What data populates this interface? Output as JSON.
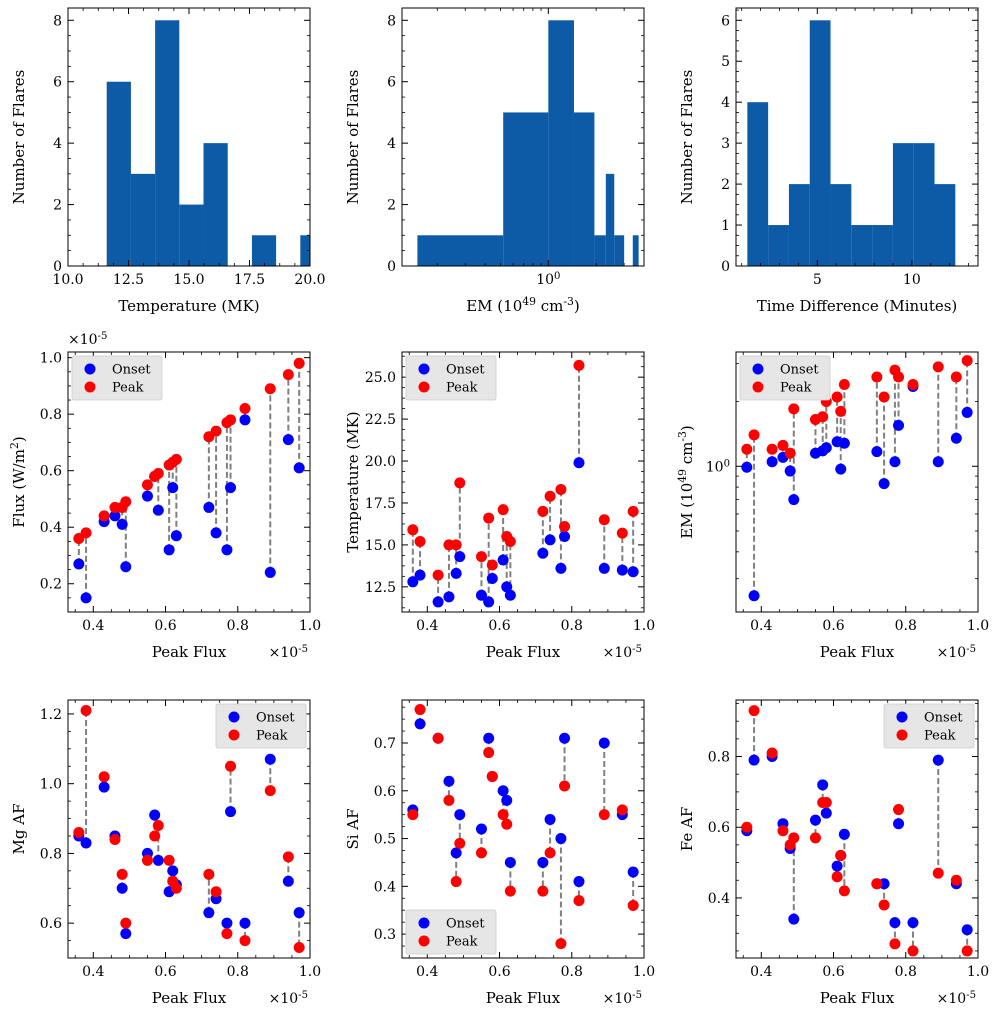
{
  "chart_data": [
    {
      "id": "temp-hist",
      "type": "histogram",
      "xlabel": "Temperature (MK)",
      "ylabel": "Number of Flares",
      "xlim": [
        10.0,
        20.0
      ],
      "ylim": [
        0,
        8.4
      ],
      "xscale": "linear",
      "xticks": [
        10.0,
        12.5,
        15.0,
        17.5,
        20.0
      ],
      "xtick_labels": [
        "10.0",
        "12.5",
        "15.0",
        "17.5",
        "20.0"
      ],
      "yticks": [
        0,
        2,
        4,
        6,
        8
      ],
      "ytick_labels": [
        "0",
        "2",
        "4",
        "6",
        "8"
      ],
      "bins": [
        [
          11.6,
          12.6,
          6
        ],
        [
          12.6,
          13.6,
          3
        ],
        [
          13.6,
          14.6,
          8
        ],
        [
          14.6,
          15.6,
          2
        ],
        [
          15.6,
          16.6,
          4
        ],
        [
          16.6,
          17.6,
          0
        ],
        [
          17.6,
          18.6,
          1
        ],
        [
          18.6,
          19.6,
          0
        ],
        [
          19.6,
          20.6,
          1
        ]
      ]
    },
    {
      "id": "em-hist",
      "type": "histogram",
      "xlabel": "EM (10^49 cm^-3)",
      "ylabel": "Number of Flares",
      "xlim": [
        0.12,
        4.0
      ],
      "ylim": [
        0,
        8.4
      ],
      "xscale": "log",
      "xticks": [
        1.0
      ],
      "xtick_labels": [
        "10^0"
      ],
      "yticks": [
        0,
        2,
        4,
        6,
        8
      ],
      "ytick_labels": [
        "0",
        "2",
        "4",
        "6",
        "8"
      ],
      "bins": [
        [
          0.15,
          0.52,
          1
        ],
        [
          0.52,
          1.0,
          5
        ],
        [
          1.0,
          1.45,
          8
        ],
        [
          1.45,
          1.95,
          5
        ],
        [
          1.95,
          2.3,
          1
        ],
        [
          2.3,
          2.6,
          3
        ],
        [
          2.6,
          3.0,
          1
        ],
        [
          3.0,
          3.4,
          0
        ],
        [
          3.4,
          3.7,
          1
        ]
      ]
    },
    {
      "id": "dt-hist",
      "type": "histogram",
      "xlabel": "Time Difference (Minutes)",
      "ylabel": "Number of Flares",
      "xlim": [
        0.7,
        13.5
      ],
      "ylim": [
        0,
        6.3
      ],
      "xscale": "linear",
      "xticks": [
        5,
        10
      ],
      "xtick_labels": [
        "5",
        "10"
      ],
      "yticks": [
        0,
        1,
        2,
        3,
        4,
        5,
        6
      ],
      "ytick_labels": [
        "0",
        "1",
        "2",
        "3",
        "4",
        "5",
        "6"
      ],
      "bins": [
        [
          1.3,
          2.4,
          4
        ],
        [
          2.4,
          3.5,
          1
        ],
        [
          3.5,
          4.6,
          2
        ],
        [
          4.6,
          5.7,
          6
        ],
        [
          5.7,
          6.8,
          2
        ],
        [
          6.8,
          7.9,
          1
        ],
        [
          7.9,
          9.0,
          1
        ],
        [
          9.0,
          10.1,
          3
        ],
        [
          10.1,
          11.2,
          3
        ],
        [
          11.2,
          12.3,
          2
        ]
      ]
    },
    {
      "id": "flux-scatter",
      "type": "scatter",
      "xlabel": "Peak Flux",
      "ylabel": "Flux (W/m^2)",
      "x_offset_label": "×10^-5",
      "y_offset_label": "×10^-5",
      "xlim": [
        0.33,
        1.0
      ],
      "ylim": [
        0.1,
        1.02
      ],
      "xscale": "linear",
      "yscale": "linear",
      "xticks": [
        0.4,
        0.6,
        0.8,
        1.0
      ],
      "xtick_labels": [
        "0.4",
        "0.6",
        "0.8",
        "1.0"
      ],
      "yticks": [
        0.2,
        0.4,
        0.6,
        0.8,
        1.0
      ],
      "ytick_labels": [
        "0.2",
        "0.4",
        "0.6",
        "0.8",
        "1.0"
      ],
      "legend": {
        "position": "upper-left",
        "entries": [
          "Onset",
          "Peak"
        ]
      },
      "x": [
        0.36,
        0.38,
        0.43,
        0.46,
        0.48,
        0.49,
        0.55,
        0.57,
        0.58,
        0.61,
        0.62,
        0.63,
        0.72,
        0.74,
        0.77,
        0.78,
        0.82,
        0.89,
        0.94,
        0.97
      ],
      "onset": [
        0.27,
        0.15,
        0.42,
        0.44,
        0.41,
        0.26,
        0.51,
        0.58,
        0.46,
        0.32,
        0.54,
        0.37,
        0.47,
        0.38,
        0.32,
        0.54,
        0.78,
        0.24,
        0.71,
        0.61
      ],
      "peak": [
        0.36,
        0.38,
        0.44,
        0.47,
        0.47,
        0.49,
        0.55,
        0.58,
        0.59,
        0.62,
        0.63,
        0.64,
        0.72,
        0.74,
        0.77,
        0.78,
        0.82,
        0.89,
        0.94,
        0.98
      ]
    },
    {
      "id": "temp-scatter",
      "type": "scatter",
      "xlabel": "Peak Flux",
      "ylabel": "Temperature (MK)",
      "x_offset_label": "×10^-5",
      "xlim": [
        0.33,
        1.0
      ],
      "ylim": [
        11.0,
        26.5
      ],
      "xscale": "linear",
      "yscale": "linear",
      "xticks": [
        0.4,
        0.6,
        0.8,
        1.0
      ],
      "xtick_labels": [
        "0.4",
        "0.6",
        "0.8",
        "1.0"
      ],
      "yticks": [
        12.5,
        15.0,
        17.5,
        20.0,
        22.5,
        25.0
      ],
      "ytick_labels": [
        "12.5",
        "15.0",
        "17.5",
        "20.0",
        "22.5",
        "25.0"
      ],
      "legend": {
        "position": "upper-left",
        "entries": [
          "Onset",
          "Peak"
        ]
      },
      "x": [
        0.36,
        0.38,
        0.43,
        0.46,
        0.48,
        0.49,
        0.55,
        0.57,
        0.58,
        0.61,
        0.62,
        0.63,
        0.72,
        0.74,
        0.77,
        0.78,
        0.82,
        0.89,
        0.94,
        0.97
      ],
      "onset": [
        12.8,
        13.2,
        11.6,
        11.9,
        13.3,
        14.3,
        12.0,
        11.6,
        13.0,
        14.1,
        12.5,
        12.0,
        14.5,
        15.3,
        13.6,
        15.5,
        19.9,
        13.6,
        13.5,
        13.4
      ],
      "peak": [
        15.9,
        15.2,
        13.2,
        15.0,
        15.0,
        18.7,
        14.3,
        16.6,
        13.8,
        17.1,
        15.5,
        15.2,
        17.0,
        17.9,
        18.3,
        16.1,
        25.7,
        16.5,
        15.7,
        17.0
      ]
    },
    {
      "id": "em-scatter",
      "type": "scatter",
      "xlabel": "Peak Flux",
      "ylabel": "EM (10^49 cm^-3)",
      "x_offset_label": "×10^-5",
      "xlim": [
        0.33,
        1.0
      ],
      "ylim": [
        0.21,
        3.4
      ],
      "xscale": "linear",
      "yscale": "log",
      "xticks": [
        0.4,
        0.6,
        0.8,
        1.0
      ],
      "xtick_labels": [
        "0.4",
        "0.6",
        "0.8",
        "1.0"
      ],
      "yticks": [
        1.0
      ],
      "ytick_labels": [
        "10^0"
      ],
      "legend": {
        "position": "upper-left",
        "entries": [
          "Onset",
          "Peak"
        ]
      },
      "x": [
        0.36,
        0.38,
        0.43,
        0.46,
        0.48,
        0.49,
        0.55,
        0.57,
        0.58,
        0.61,
        0.62,
        0.63,
        0.72,
        0.74,
        0.77,
        0.78,
        0.82,
        0.89,
        0.94,
        0.97
      ],
      "onset": [
        0.99,
        0.25,
        1.05,
        1.1,
        0.95,
        0.7,
        1.15,
        1.18,
        1.22,
        1.3,
        0.97,
        1.28,
        1.17,
        0.83,
        1.05,
        1.55,
        2.35,
        1.05,
        1.35,
        1.78
      ],
      "peak": [
        1.2,
        1.4,
        1.2,
        1.25,
        1.15,
        1.85,
        1.65,
        1.7,
        2.0,
        2.1,
        1.8,
        2.4,
        2.6,
        2.1,
        2.8,
        2.6,
        2.4,
        2.9,
        2.6,
        3.1
      ]
    },
    {
      "id": "mg-scatter",
      "type": "scatter",
      "xlabel": "Peak Flux",
      "ylabel": "Mg AF",
      "x_offset_label": "×10^-5",
      "xlim": [
        0.33,
        1.0
      ],
      "ylim": [
        0.5,
        1.24
      ],
      "xscale": "linear",
      "yscale": "linear",
      "xticks": [
        0.4,
        0.6,
        0.8,
        1.0
      ],
      "xtick_labels": [
        "0.4",
        "0.6",
        "0.8",
        "1.0"
      ],
      "yticks": [
        0.6,
        0.8,
        1.0,
        1.2
      ],
      "ytick_labels": [
        "0.6",
        "0.8",
        "1.0",
        "1.2"
      ],
      "legend": {
        "position": "upper-right",
        "entries": [
          "Onset",
          "Peak"
        ]
      },
      "x": [
        0.36,
        0.38,
        0.43,
        0.46,
        0.48,
        0.49,
        0.55,
        0.57,
        0.58,
        0.61,
        0.62,
        0.63,
        0.72,
        0.74,
        0.77,
        0.78,
        0.82,
        0.89,
        0.94,
        0.97
      ],
      "onset": [
        0.85,
        0.83,
        0.99,
        0.85,
        0.7,
        0.57,
        0.8,
        0.91,
        0.78,
        0.69,
        0.75,
        0.71,
        0.63,
        0.67,
        0.6,
        0.92,
        0.6,
        1.07,
        0.72,
        0.63
      ],
      "peak": [
        0.86,
        1.21,
        1.02,
        0.84,
        0.74,
        0.6,
        0.78,
        0.85,
        0.88,
        0.78,
        0.72,
        0.7,
        0.74,
        0.69,
        0.57,
        1.05,
        0.55,
        0.98,
        0.79,
        0.53
      ]
    },
    {
      "id": "si-scatter",
      "type": "scatter",
      "xlabel": "Peak Flux",
      "ylabel": "Si AF",
      "x_offset_label": "×10^-5",
      "xlim": [
        0.33,
        1.0
      ],
      "ylim": [
        0.25,
        0.79
      ],
      "xscale": "linear",
      "yscale": "linear",
      "xticks": [
        0.4,
        0.6,
        0.8,
        1.0
      ],
      "xtick_labels": [
        "0.4",
        "0.6",
        "0.8",
        "1.0"
      ],
      "yticks": [
        0.3,
        0.4,
        0.5,
        0.6,
        0.7
      ],
      "ytick_labels": [
        "0.3",
        "0.4",
        "0.5",
        "0.6",
        "0.7"
      ],
      "legend": {
        "position": "lower-left",
        "entries": [
          "Onset",
          "Peak"
        ]
      },
      "x": [
        0.36,
        0.38,
        0.43,
        0.46,
        0.48,
        0.49,
        0.55,
        0.57,
        0.58,
        0.61,
        0.62,
        0.63,
        0.72,
        0.74,
        0.77,
        0.78,
        0.82,
        0.89,
        0.94,
        0.97
      ],
      "onset": [
        0.56,
        0.74,
        0.71,
        0.62,
        0.47,
        0.55,
        0.52,
        0.71,
        0.63,
        0.6,
        0.58,
        0.45,
        0.45,
        0.54,
        0.5,
        0.71,
        0.41,
        0.7,
        0.55,
        0.43
      ],
      "peak": [
        0.55,
        0.77,
        0.71,
        0.58,
        0.41,
        0.49,
        0.47,
        0.68,
        0.63,
        0.55,
        0.53,
        0.39,
        0.39,
        0.47,
        0.28,
        0.61,
        0.37,
        0.55,
        0.56,
        0.36
      ]
    },
    {
      "id": "fe-scatter",
      "type": "scatter",
      "xlabel": "Peak Flux",
      "ylabel": "Fe AF",
      "x_offset_label": "×10^-5",
      "xlim": [
        0.33,
        1.0
      ],
      "ylim": [
        0.23,
        0.96
      ],
      "xscale": "linear",
      "yscale": "linear",
      "xticks": [
        0.4,
        0.6,
        0.8,
        1.0
      ],
      "xtick_labels": [
        "0.4",
        "0.6",
        "0.8",
        "1.0"
      ],
      "yticks": [
        0.4,
        0.6,
        0.8
      ],
      "ytick_labels": [
        "0.4",
        "0.6",
        "0.8"
      ],
      "legend": {
        "position": "upper-right",
        "entries": [
          "Onset",
          "Peak"
        ]
      },
      "x": [
        0.36,
        0.38,
        0.43,
        0.46,
        0.48,
        0.49,
        0.55,
        0.57,
        0.58,
        0.61,
        0.62,
        0.63,
        0.72,
        0.74,
        0.77,
        0.78,
        0.82,
        0.89,
        0.94,
        0.97
      ],
      "onset": [
        0.59,
        0.79,
        0.8,
        0.61,
        0.54,
        0.34,
        0.62,
        0.72,
        0.64,
        0.49,
        0.52,
        0.58,
        0.44,
        0.44,
        0.33,
        0.61,
        0.33,
        0.79,
        0.44,
        0.31
      ],
      "peak": [
        0.6,
        0.93,
        0.81,
        0.59,
        0.55,
        0.57,
        0.57,
        0.67,
        0.67,
        0.46,
        0.52,
        0.42,
        0.44,
        0.38,
        0.27,
        0.65,
        0.25,
        0.47,
        0.45,
        0.25
      ]
    }
  ],
  "colors": {
    "bar": "#0d5aa7",
    "onset": "#0000ff",
    "peak": "#ff0000",
    "connector": "#808080",
    "legend_bg": "#e6e6e6"
  }
}
